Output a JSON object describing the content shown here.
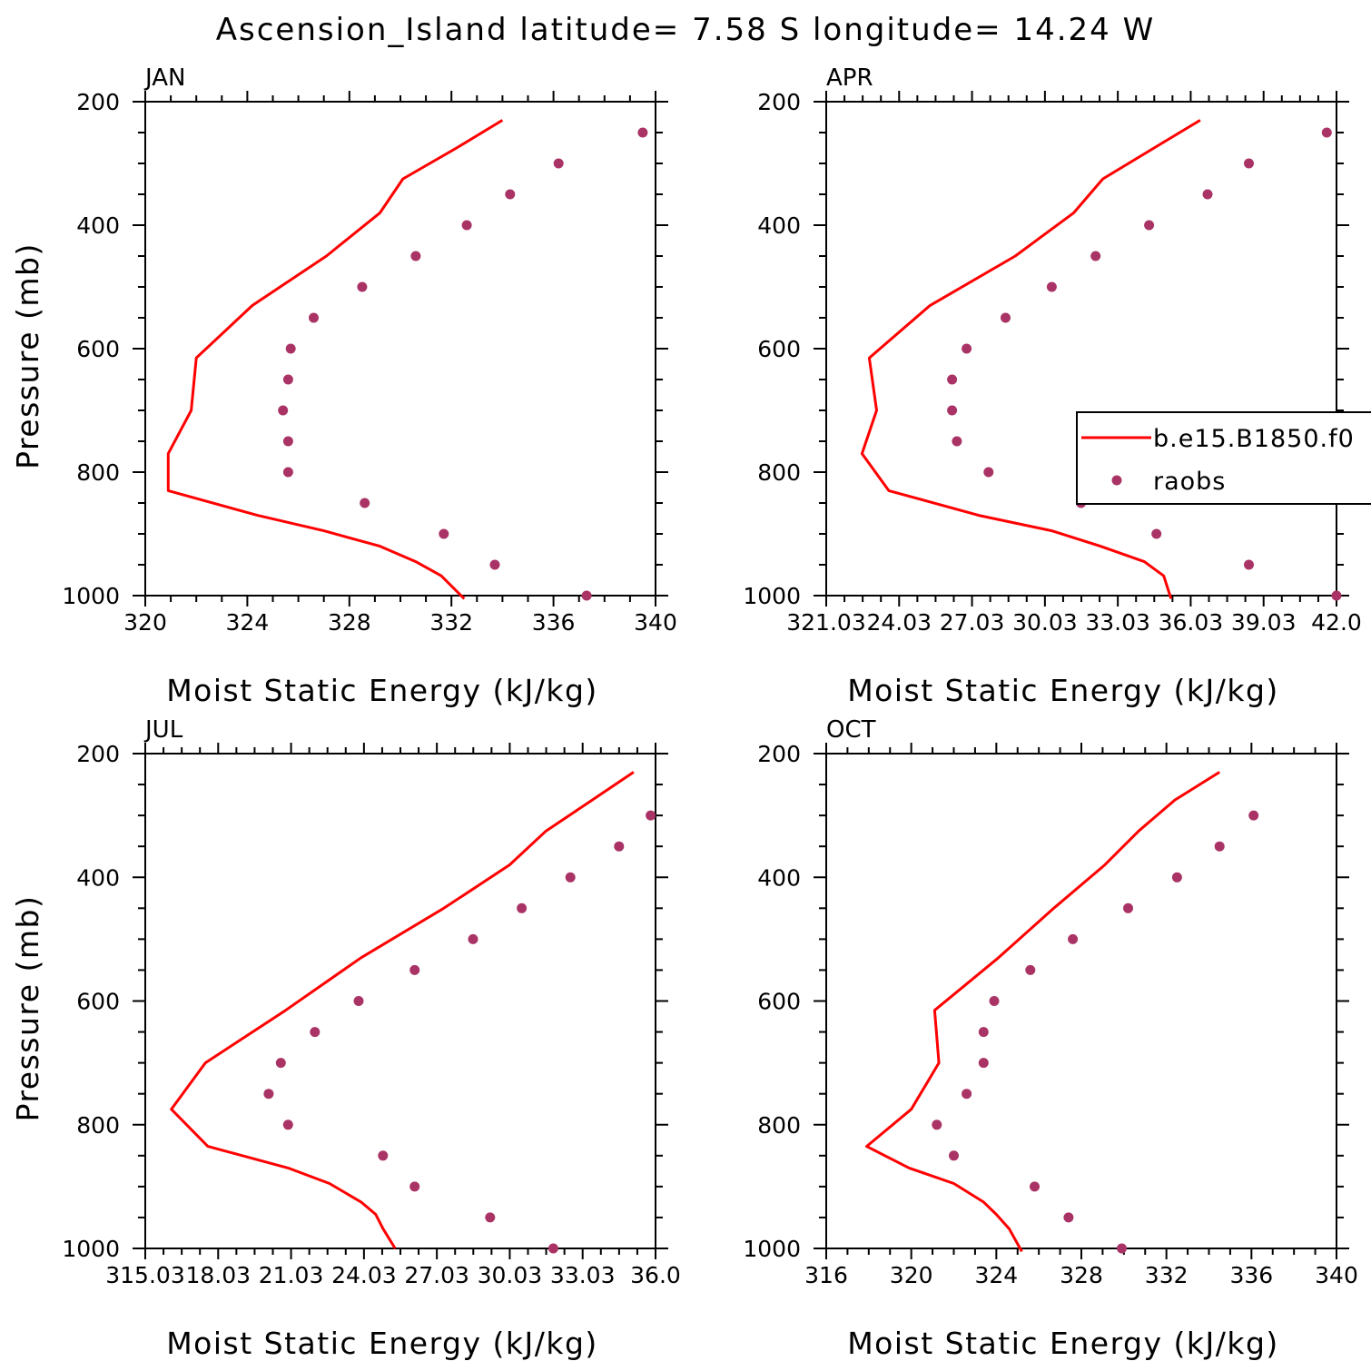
{
  "figure_title": "Ascension_Island  latitude= 7.58 S longitude= 14.24 W",
  "colors": {
    "model_line": "#ff0000",
    "raobs_points": "#aa3366",
    "axes": "#000000",
    "background": "#ffffff"
  },
  "legend": {
    "placement": "right, inside APR panel (clipped at figure edge)",
    "entries": [
      "b.e15.B1850.f0",
      "raobs"
    ]
  },
  "chart_data": [
    {
      "type": "line",
      "panel": "JAN",
      "xlabel": "Moist Static Energy (kJ/kg)",
      "ylabel": "Pressure (mb)",
      "xlim": [
        320,
        340
      ],
      "ylim": [
        200,
        1000
      ],
      "y_inverted": true,
      "xticks": [
        320,
        324,
        328,
        332,
        336,
        340
      ],
      "xtick_labels": [
        "320",
        "324",
        "328",
        "332",
        "336",
        "340"
      ],
      "yticks": [
        200,
        400,
        600,
        800,
        1000
      ],
      "series": [
        {
          "name": "b.e15.B1850.f0",
          "style": "line",
          "points": [
            [
              334.0,
              230
            ],
            [
              332.2,
              275
            ],
            [
              330.1,
              325
            ],
            [
              329.2,
              380
            ],
            [
              327.1,
              450
            ],
            [
              324.2,
              530
            ],
            [
              322.0,
              615
            ],
            [
              321.8,
              700
            ],
            [
              320.9,
              770
            ],
            [
              320.9,
              830
            ],
            [
              324.4,
              870
            ],
            [
              327.0,
              895
            ],
            [
              329.2,
              920
            ],
            [
              330.6,
              945
            ],
            [
              331.6,
              968
            ],
            [
              332.5,
              1005
            ]
          ]
        },
        {
          "name": "raobs",
          "style": "scatter",
          "points": [
            [
              339.5,
              250
            ],
            [
              336.2,
              300
            ],
            [
              334.3,
              350
            ],
            [
              332.6,
              400
            ],
            [
              330.6,
              450
            ],
            [
              328.5,
              500
            ],
            [
              326.6,
              550
            ],
            [
              325.7,
              600
            ],
            [
              325.6,
              650
            ],
            [
              325.4,
              700
            ],
            [
              325.6,
              750
            ],
            [
              325.6,
              800
            ],
            [
              328.6,
              850
            ],
            [
              331.7,
              900
            ],
            [
              333.7,
              950
            ],
            [
              337.3,
              1000
            ]
          ]
        }
      ]
    },
    {
      "type": "line",
      "panel": "APR",
      "xlabel": "Moist Static Energy (kJ/kg)",
      "ylabel": "",
      "xlim": [
        321.03,
        342.0
      ],
      "ylim": [
        200,
        1000
      ],
      "y_inverted": true,
      "xticks": [
        321.03,
        324.03,
        327.03,
        330.03,
        333.03,
        336.03,
        339.03,
        342.0
      ],
      "xtick_labels": [
        "321.03",
        "24.03",
        "27.03",
        "30.03",
        "33.03",
        "36.03",
        "39.03",
        "42.0"
      ],
      "yticks": [
        200,
        400,
        600,
        800,
        1000
      ],
      "series": [
        {
          "name": "b.e15.B1850.f0",
          "style": "line",
          "points": [
            [
              336.4,
              230
            ],
            [
              334.5,
              275
            ],
            [
              332.4,
              325
            ],
            [
              331.2,
              380
            ],
            [
              328.8,
              450
            ],
            [
              325.3,
              530
            ],
            [
              322.8,
              615
            ],
            [
              323.1,
              700
            ],
            [
              322.5,
              770
            ],
            [
              323.6,
              830
            ],
            [
              327.3,
              870
            ],
            [
              330.3,
              895
            ],
            [
              332.3,
              920
            ],
            [
              334.1,
              945
            ],
            [
              334.9,
              968
            ],
            [
              335.2,
              1005
            ]
          ]
        },
        {
          "name": "raobs",
          "style": "scatter",
          "points": [
            [
              341.6,
              250
            ],
            [
              338.4,
              300
            ],
            [
              336.7,
              350
            ],
            [
              334.3,
              400
            ],
            [
              332.1,
              450
            ],
            [
              330.3,
              500
            ],
            [
              328.4,
              550
            ],
            [
              326.8,
              600
            ],
            [
              326.2,
              650
            ],
            [
              326.2,
              700
            ],
            [
              326.4,
              750
            ],
            [
              327.7,
              800
            ],
            [
              331.5,
              850
            ],
            [
              334.6,
              900
            ],
            [
              338.4,
              950
            ],
            [
              342.0,
              1000
            ]
          ]
        }
      ]
    },
    {
      "type": "line",
      "panel": "JUL",
      "xlabel": "Moist Static Energy (kJ/kg)",
      "ylabel": "Pressure (mb)",
      "xlim": [
        315.03,
        336.0
      ],
      "ylim": [
        200,
        1000
      ],
      "y_inverted": true,
      "xticks": [
        315.03,
        318.03,
        321.03,
        324.03,
        327.03,
        330.03,
        333.03,
        336.0
      ],
      "xtick_labels": [
        "315.03",
        "18.03",
        "21.03",
        "24.03",
        "27.03",
        "30.03",
        "33.03",
        "36.0"
      ],
      "yticks": [
        200,
        400,
        600,
        800,
        1000
      ],
      "series": [
        {
          "name": "b.e15.B1850.f0",
          "style": "line",
          "points": [
            [
              335.1,
              230
            ],
            [
              333.4,
              275
            ],
            [
              331.5,
              325
            ],
            [
              330.0,
              380
            ],
            [
              327.3,
              450
            ],
            [
              323.9,
              530
            ],
            [
              320.8,
              615
            ],
            [
              317.5,
              700
            ],
            [
              316.1,
              775
            ],
            [
              317.6,
              835
            ],
            [
              320.9,
              870
            ],
            [
              322.6,
              895
            ],
            [
              323.9,
              925
            ],
            [
              324.5,
              945
            ],
            [
              324.8,
              968
            ],
            [
              325.3,
              1000
            ]
          ]
        },
        {
          "name": "raobs",
          "style": "scatter",
          "points": [
            [
              335.8,
              300
            ],
            [
              334.5,
              350
            ],
            [
              332.5,
              400
            ],
            [
              330.5,
              450
            ],
            [
              328.5,
              500
            ],
            [
              326.1,
              550
            ],
            [
              323.8,
              600
            ],
            [
              322.0,
              650
            ],
            [
              320.6,
              700
            ],
            [
              320.1,
              750
            ],
            [
              320.9,
              800
            ],
            [
              324.8,
              850
            ],
            [
              326.1,
              900
            ],
            [
              329.2,
              950
            ],
            [
              331.8,
              1000
            ]
          ]
        }
      ]
    },
    {
      "type": "line",
      "panel": "OCT",
      "xlabel": "Moist Static Energy (kJ/kg)",
      "ylabel": "",
      "xlim": [
        316,
        340
      ],
      "ylim": [
        200,
        1000
      ],
      "y_inverted": true,
      "xticks": [
        316,
        320,
        324,
        328,
        332,
        336,
        340
      ],
      "xtick_labels": [
        "316",
        "320",
        "324",
        "328",
        "332",
        "336",
        "340"
      ],
      "yticks": [
        200,
        400,
        600,
        800,
        1000
      ],
      "series": [
        {
          "name": "b.e15.B1850.f0",
          "style": "line",
          "points": [
            [
              334.5,
              230
            ],
            [
              332.4,
              275
            ],
            [
              330.7,
              325
            ],
            [
              329.1,
              380
            ],
            [
              326.7,
              450
            ],
            [
              324.1,
              530
            ],
            [
              321.1,
              615
            ],
            [
              321.3,
              700
            ],
            [
              320.0,
              775
            ],
            [
              317.9,
              835
            ],
            [
              319.9,
              870
            ],
            [
              322.0,
              895
            ],
            [
              323.4,
              925
            ],
            [
              324.0,
              945
            ],
            [
              324.6,
              968
            ],
            [
              325.2,
              1005
            ]
          ]
        },
        {
          "name": "raobs",
          "style": "scatter",
          "points": [
            [
              336.1,
              300
            ],
            [
              334.5,
              350
            ],
            [
              332.5,
              400
            ],
            [
              330.2,
              450
            ],
            [
              327.6,
              500
            ],
            [
              325.6,
              550
            ],
            [
              323.9,
              600
            ],
            [
              323.4,
              650
            ],
            [
              323.4,
              700
            ],
            [
              322.6,
              750
            ],
            [
              321.2,
              800
            ],
            [
              322.0,
              850
            ],
            [
              325.8,
              900
            ],
            [
              327.4,
              950
            ],
            [
              329.9,
              1000
            ]
          ]
        }
      ]
    }
  ]
}
